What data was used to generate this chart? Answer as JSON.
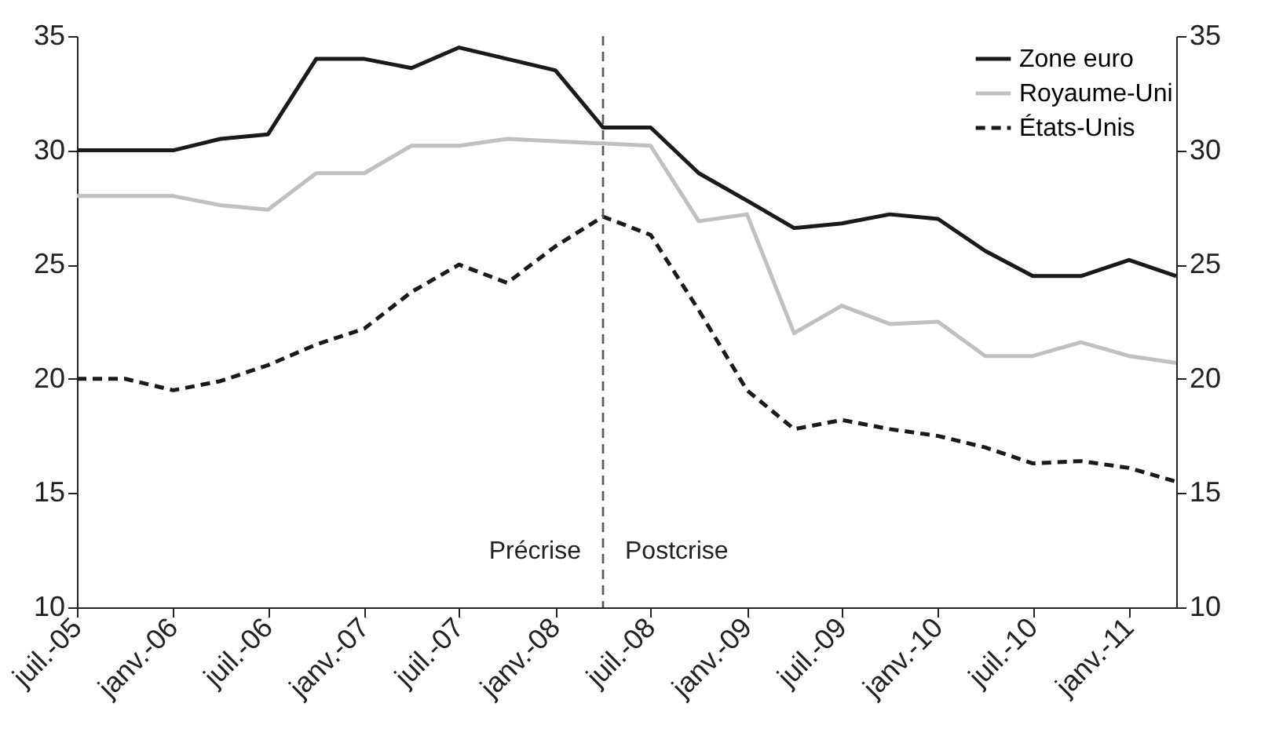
{
  "chart_data": {
    "type": "line",
    "x": [
      "2005-07",
      "2005-10",
      "2006-01",
      "2006-04",
      "2006-07",
      "2006-10",
      "2007-01",
      "2007-04",
      "2007-07",
      "2007-10",
      "2008-01",
      "2008-04",
      "2008-07",
      "2008-10",
      "2009-01",
      "2009-04",
      "2009-07",
      "2009-10",
      "2010-01",
      "2010-04",
      "2010-07",
      "2010-10",
      "2011-01",
      "2011-04"
    ],
    "series": [
      {
        "name": "Zone euro",
        "color": "#1a1a1a",
        "line_style": "solid",
        "values": [
          30,
          30,
          30,
          30.5,
          30.7,
          34,
          34,
          33.6,
          34.5,
          34,
          33.5,
          31,
          31,
          29,
          27.8,
          26.6,
          26.8,
          27.2,
          27,
          25.6,
          24.5,
          24.5,
          25.2,
          24.5
        ]
      },
      {
        "name": "Royaume-Uni",
        "color": "#c0c0c0",
        "line_style": "solid",
        "values": [
          28,
          28,
          28,
          27.6,
          27.4,
          29,
          29,
          30.2,
          30.2,
          30.5,
          30.4,
          30.3,
          30.2,
          26.9,
          27.2,
          22,
          23.2,
          22.4,
          22.5,
          21,
          21,
          21.6,
          21,
          20.7
        ]
      },
      {
        "name": "États-Unis",
        "color": "#1a1a1a",
        "line_style": "dashed",
        "values": [
          20,
          20,
          19.5,
          19.9,
          20.6,
          21.5,
          22.2,
          23.8,
          25,
          24.2,
          25.8,
          27.1,
          26.3,
          23,
          19.5,
          17.8,
          18.2,
          17.8,
          17.5,
          17,
          16.3,
          16.4,
          16.1,
          15.5
        ]
      }
    ],
    "xlim": [
      "2005-07",
      "2011-04"
    ],
    "xticks": [
      {
        "value": "2005-07",
        "label": "juil.-05"
      },
      {
        "value": "2006-01",
        "label": "janv.-06"
      },
      {
        "value": "2006-07",
        "label": "juil.-06"
      },
      {
        "value": "2007-01",
        "label": "janv.-07"
      },
      {
        "value": "2007-07",
        "label": "juil.-07"
      },
      {
        "value": "2008-01",
        "label": "janv.-08"
      },
      {
        "value": "2008-07",
        "label": "juil.-08"
      },
      {
        "value": "2009-01",
        "label": "janv.-09"
      },
      {
        "value": "2009-07",
        "label": "juil.-09"
      },
      {
        "value": "2010-01",
        "label": "janv.-10"
      },
      {
        "value": "2010-07",
        "label": "juil.-10"
      },
      {
        "value": "2011-01",
        "label": "janv.-11"
      }
    ],
    "ylim": [
      10,
      35
    ],
    "yticks": [
      10,
      15,
      20,
      25,
      30,
      35
    ],
    "y2lim": [
      10,
      35
    ],
    "y2ticks": [
      10,
      15,
      20,
      25,
      30,
      35
    ],
    "ref_lines": [
      {
        "axis": "x",
        "value": "2008-04",
        "color": "#555555",
        "line_style": "dashed"
      }
    ],
    "annotations": [
      "Précrise",
      "Postcrise"
    ],
    "legend": "top right",
    "grid": false
  }
}
